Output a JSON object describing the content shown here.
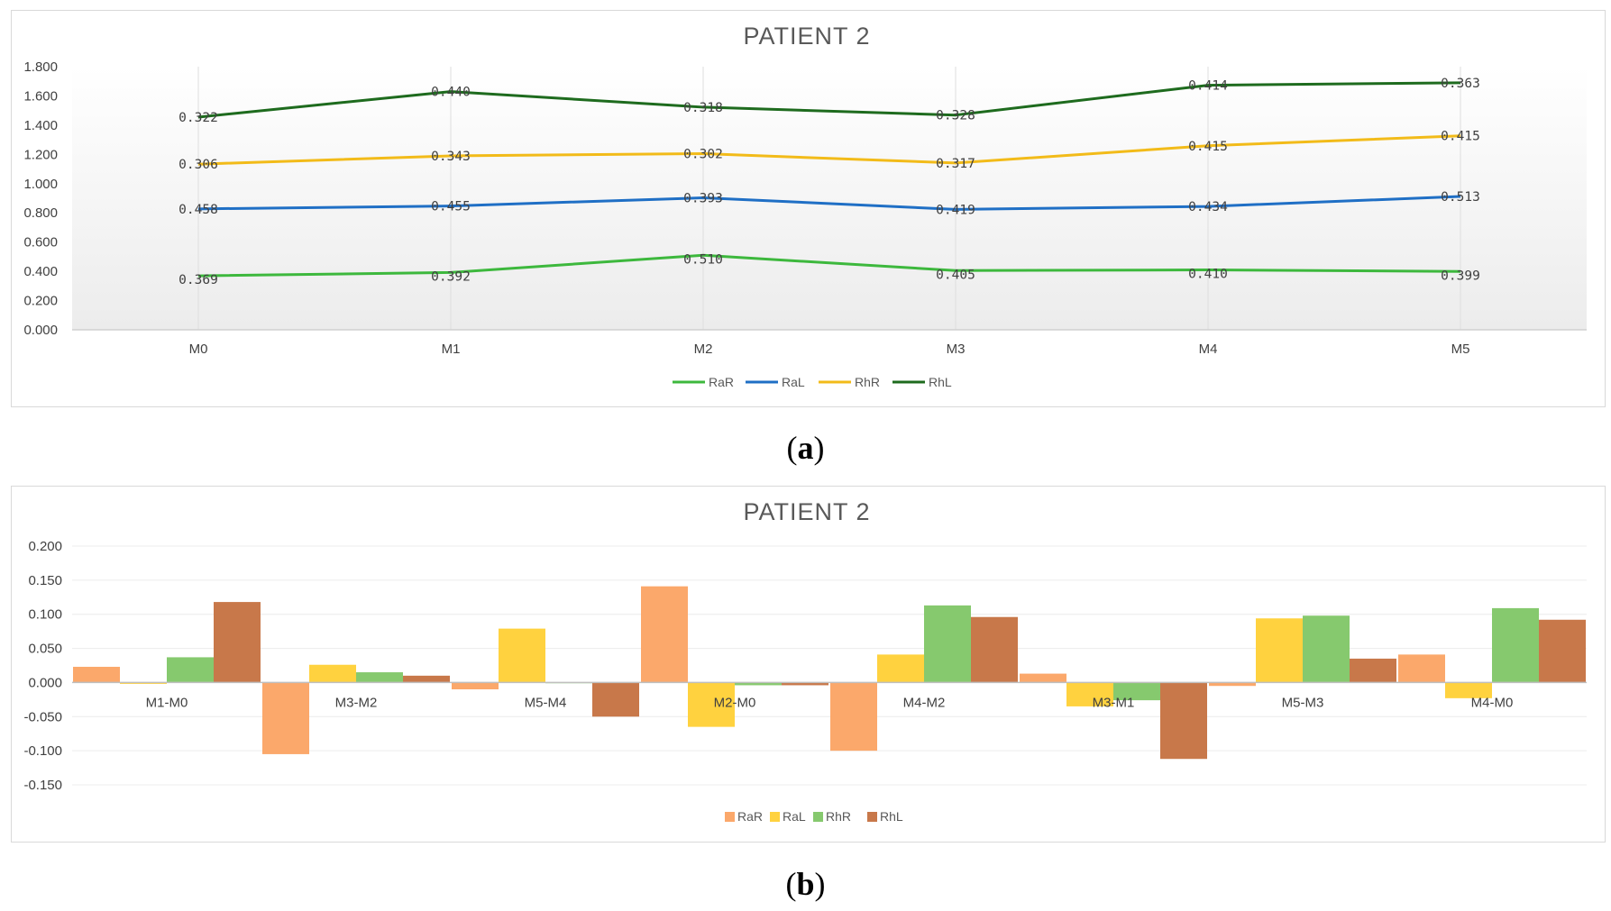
{
  "captions": {
    "a": "a",
    "b": "b"
  },
  "chart_data": [
    {
      "type": "line",
      "title": "PATIENT 2",
      "categories": [
        "M0",
        "M1",
        "M2",
        "M3",
        "M4",
        "M5"
      ],
      "ylim": [
        0,
        1.8
      ],
      "yticks": [
        "0.000",
        "0.200",
        "0.400",
        "0.600",
        "0.800",
        "1.000",
        "1.200",
        "1.400",
        "1.600",
        "1.800"
      ],
      "stacked": true,
      "legend_position": "bottom",
      "series": [
        {
          "name": "RaR",
          "color": "#3DB83D",
          "values": [
            0.369,
            0.392,
            0.51,
            0.405,
            0.41,
            0.399
          ],
          "labels": [
            "0.369",
            "0.392",
            "0.510",
            "0.405",
            "0.410",
            "0.399"
          ]
        },
        {
          "name": "RaL",
          "color": "#1F6FC5",
          "values": [
            0.458,
            0.455,
            0.393,
            0.419,
            0.434,
            0.513
          ],
          "labels": [
            "0.458",
            "0.455",
            "0.393",
            "0.419",
            "0.434",
            "0.513"
          ]
        },
        {
          "name": "RhR",
          "color": "#F2BB19",
          "values": [
            0.306,
            0.343,
            0.302,
            0.317,
            0.415,
            0.415
          ],
          "labels": [
            "0.306",
            "0.343",
            "0.302",
            "0.317",
            "0.415",
            "0.415"
          ]
        },
        {
          "name": "RhL",
          "color": "#1E6B1E",
          "values": [
            0.322,
            0.44,
            0.318,
            0.328,
            0.414,
            0.363
          ],
          "labels": [
            "0.322",
            "0.440",
            "0.318",
            "0.328",
            "0.414",
            "0.363"
          ]
        }
      ]
    },
    {
      "type": "bar",
      "title": "PATIENT 2",
      "categories": [
        "M1-M0",
        "M3-M2",
        "M5-M4",
        "M2-M0",
        "M4-M2",
        "M3-M1",
        "M5-M3",
        "M4-M0"
      ],
      "ylim": [
        -0.15,
        0.2
      ],
      "yticks": [
        "-0.150",
        "-0.100",
        "-0.050",
        "0.000",
        "0.050",
        "0.100",
        "0.150",
        "0.200"
      ],
      "legend_position": "bottom",
      "series": [
        {
          "name": "RaR",
          "color": "#FBA86B",
          "values": [
            0.023,
            -0.105,
            -0.01,
            0.141,
            -0.1,
            0.013,
            -0.005,
            0.041
          ]
        },
        {
          "name": "RaL",
          "color": "#FFD23F",
          "values": [
            -0.002,
            0.026,
            0.079,
            -0.065,
            0.041,
            -0.035,
            0.094,
            -0.023
          ]
        },
        {
          "name": "RhR",
          "color": "#86C96E",
          "values": [
            0.037,
            0.015,
            0.0,
            -0.004,
            0.113,
            -0.026,
            0.098,
            0.109
          ]
        },
        {
          "name": "RhL",
          "color": "#C8784A",
          "values": [
            0.118,
            0.01,
            -0.05,
            -0.004,
            0.096,
            -0.112,
            0.035,
            0.092
          ]
        }
      ]
    }
  ]
}
